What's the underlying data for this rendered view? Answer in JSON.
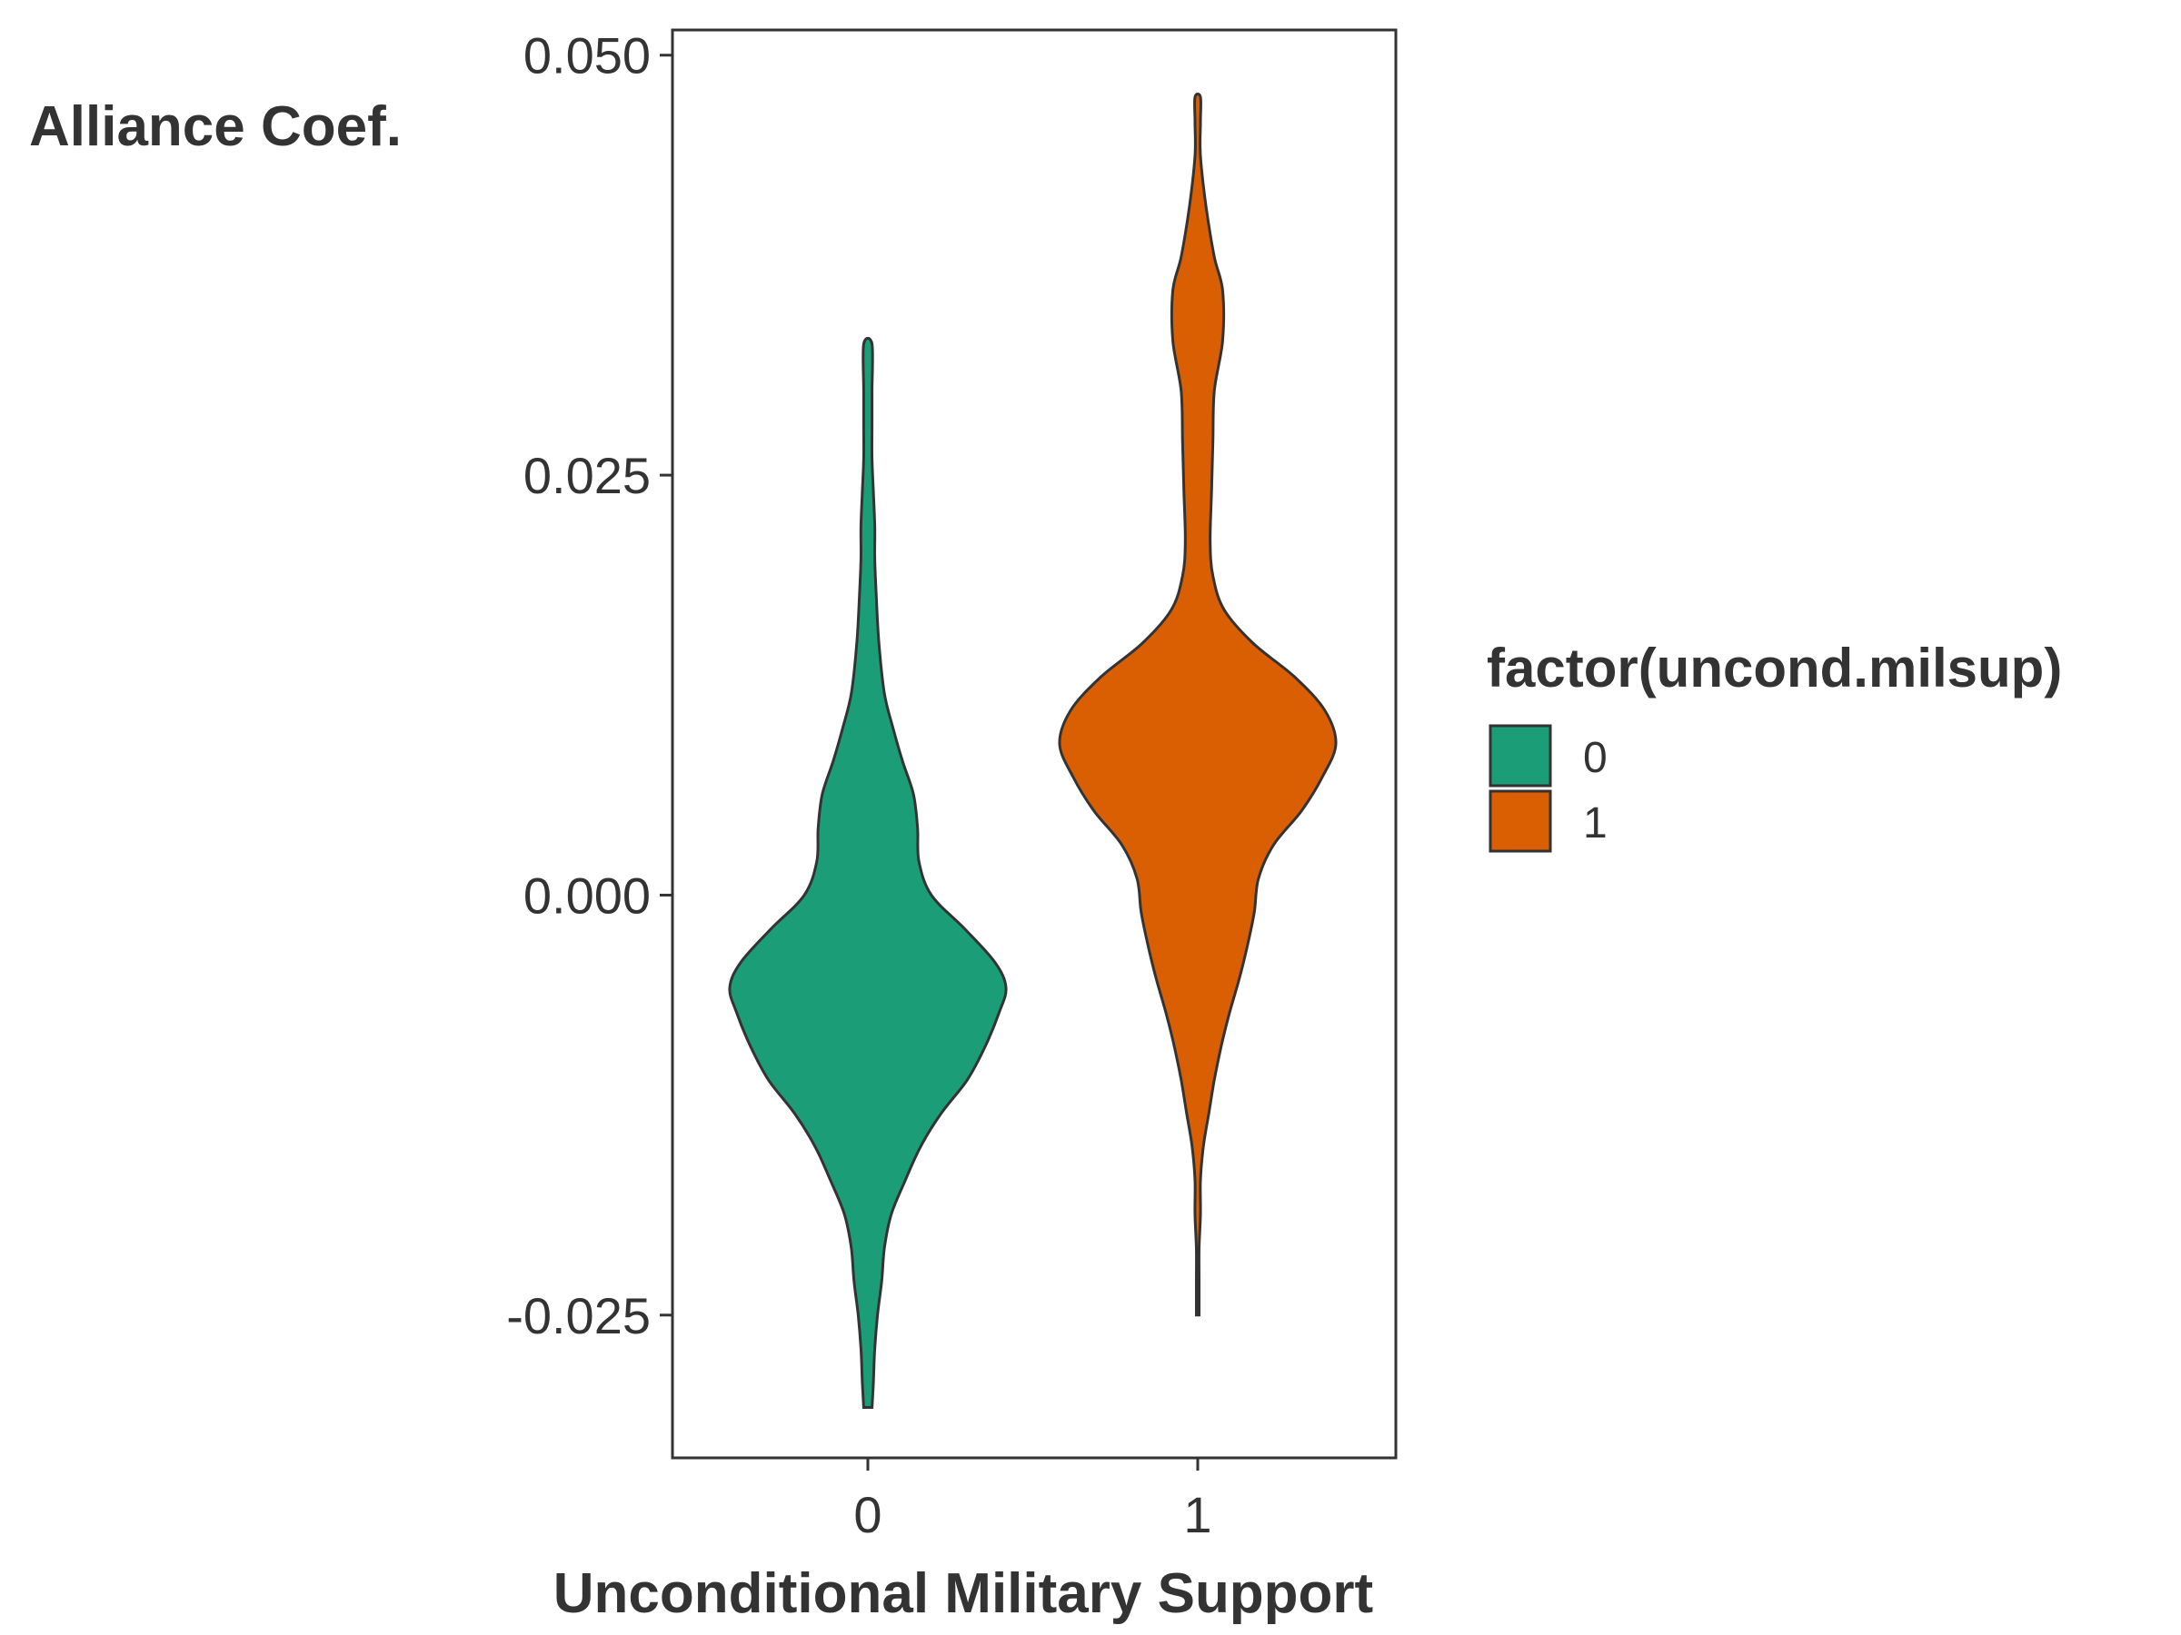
{
  "chart_data": {
    "type": "violin",
    "xlabel": "Unconditional Military Support",
    "ylabel": "Alliance Coef.",
    "categories": [
      "0",
      "1"
    ],
    "ylim": [
      -0.0335,
      0.0515
    ],
    "y_ticks": [
      -0.025,
      0.0,
      0.025,
      0.05
    ],
    "y_tick_labels": [
      "-0.025",
      "0.000",
      "0.025",
      "0.050"
    ],
    "grid": false,
    "legend": {
      "title": "factor(uncond.milsup)",
      "position": "right",
      "entries": [
        "0",
        "1"
      ]
    },
    "series": [
      {
        "category": "0",
        "color": "#1B9E77",
        "y_min": -0.0305,
        "y_max": 0.0328,
        "density_profile": [
          [
            -0.0305,
            0.03
          ],
          [
            -0.029,
            0.04
          ],
          [
            -0.027,
            0.05
          ],
          [
            -0.025,
            0.07
          ],
          [
            -0.023,
            0.1
          ],
          [
            -0.021,
            0.12
          ],
          [
            -0.019,
            0.17
          ],
          [
            -0.017,
            0.27
          ],
          [
            -0.015,
            0.38
          ],
          [
            -0.013,
            0.53
          ],
          [
            -0.011,
            0.72
          ],
          [
            -0.009,
            0.85
          ],
          [
            -0.007,
            0.95
          ],
          [
            -0.0055,
            1.0
          ],
          [
            -0.004,
            0.92
          ],
          [
            -0.002,
            0.7
          ],
          [
            0.0,
            0.46
          ],
          [
            0.002,
            0.37
          ],
          [
            0.004,
            0.36
          ],
          [
            0.006,
            0.33
          ],
          [
            0.008,
            0.25
          ],
          [
            0.01,
            0.18
          ],
          [
            0.012,
            0.12
          ],
          [
            0.015,
            0.08
          ],
          [
            0.018,
            0.06
          ],
          [
            0.02,
            0.05
          ],
          [
            0.022,
            0.05
          ],
          [
            0.024,
            0.04
          ],
          [
            0.026,
            0.03
          ],
          [
            0.028,
            0.03
          ],
          [
            0.03,
            0.03
          ],
          [
            0.0328,
            0.03
          ]
        ]
      },
      {
        "category": "1",
        "color": "#D95F02",
        "y_min": -0.025,
        "y_max": 0.0475,
        "density_profile": [
          [
            -0.025,
            0.01
          ],
          [
            -0.023,
            0.01
          ],
          [
            -0.021,
            0.01
          ],
          [
            -0.019,
            0.02
          ],
          [
            -0.017,
            0.02
          ],
          [
            -0.015,
            0.04
          ],
          [
            -0.013,
            0.08
          ],
          [
            -0.011,
            0.12
          ],
          [
            -0.009,
            0.17
          ],
          [
            -0.007,
            0.23
          ],
          [
            -0.005,
            0.3
          ],
          [
            -0.003,
            0.36
          ],
          [
            -0.001,
            0.41
          ],
          [
            0.001,
            0.44
          ],
          [
            0.003,
            0.55
          ],
          [
            0.005,
            0.75
          ],
          [
            0.007,
            0.9
          ],
          [
            0.009,
            1.0
          ],
          [
            0.011,
            0.92
          ],
          [
            0.013,
            0.7
          ],
          [
            0.015,
            0.4
          ],
          [
            0.017,
            0.19
          ],
          [
            0.019,
            0.11
          ],
          [
            0.021,
            0.09
          ],
          [
            0.024,
            0.1
          ],
          [
            0.027,
            0.11
          ],
          [
            0.03,
            0.12
          ],
          [
            0.033,
            0.18
          ],
          [
            0.036,
            0.18
          ],
          [
            0.038,
            0.12
          ],
          [
            0.041,
            0.06
          ],
          [
            0.044,
            0.02
          ],
          [
            0.046,
            0.02
          ],
          [
            0.0475,
            0.02
          ]
        ]
      }
    ]
  }
}
